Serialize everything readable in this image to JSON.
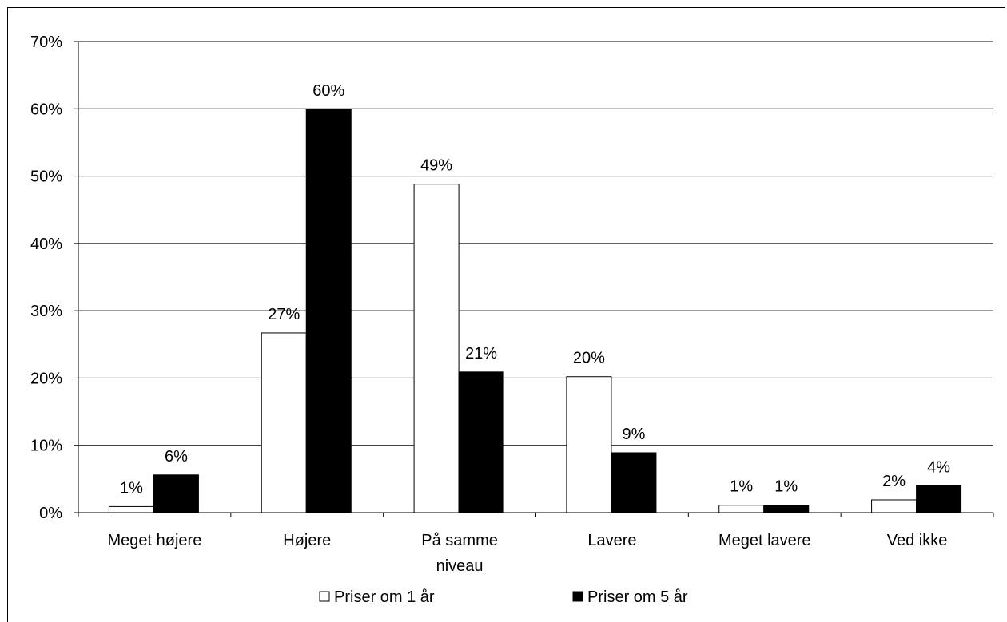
{
  "chart_data": {
    "type": "bar",
    "categories": [
      "Meget højere",
      "Højere",
      "På samme niveau",
      "Lavere",
      "Meget lavere",
      "Ved ikke"
    ],
    "category_lines": [
      [
        "Meget højere"
      ],
      [
        "Højere"
      ],
      [
        "På samme",
        "niveau"
      ],
      [
        "Lavere"
      ],
      [
        "Meget lavere"
      ],
      [
        "Ved ikke"
      ]
    ],
    "series": [
      {
        "name": "Priser om 1 år",
        "values": [
          1,
          27,
          49,
          20,
          1,
          2
        ],
        "labels": [
          "1%",
          "27%",
          "49%",
          "20%",
          "1%",
          "2%"
        ],
        "color": "#ffffff"
      },
      {
        "name": "Priser om 5 år",
        "values": [
          6,
          60,
          21,
          9,
          1,
          4
        ],
        "labels": [
          "6%",
          "60%",
          "21%",
          "9%",
          "1%",
          "4%"
        ],
        "color": "#000000"
      }
    ],
    "plotted_values": [
      [
        0.9,
        26.7,
        48.8,
        20.2,
        1.1,
        1.9
      ],
      [
        5.6,
        59.9,
        20.9,
        8.9,
        1.1,
        4.0
      ]
    ],
    "yticks": [
      "0%",
      "10%",
      "20%",
      "30%",
      "40%",
      "50%",
      "60%",
      "70%"
    ],
    "ylim": [
      0,
      70
    ],
    "grid": "horizontal",
    "legend": "bottom-center",
    "title": "",
    "xlabel": "",
    "ylabel": ""
  }
}
